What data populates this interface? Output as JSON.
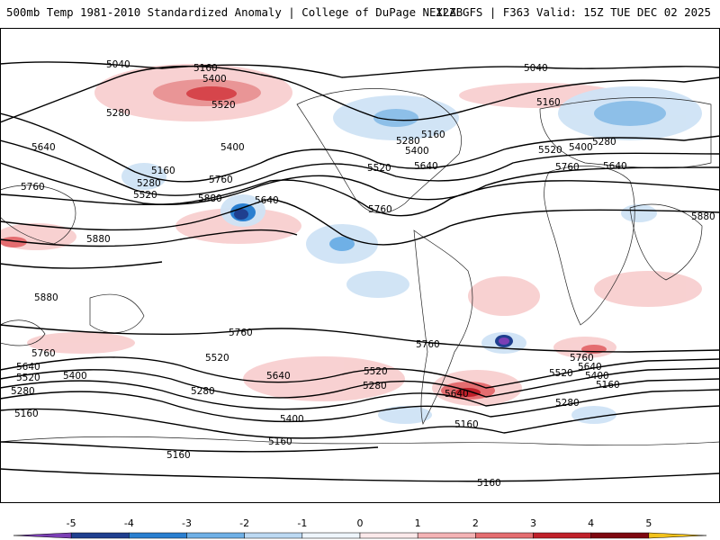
{
  "header": {
    "title": "500mb Temp 1981-2010 Standardized Anomaly | College of DuPage NEXLAB",
    "run_info": "12Z GFS | F363 Valid: 15Z TUE DEC 02 2025"
  },
  "map": {
    "projection": "global cylindrical",
    "contour_labels": [
      {
        "id": "c1",
        "text": "5040"
      },
      {
        "id": "c2",
        "text": "5160"
      },
      {
        "id": "c3",
        "text": "5400"
      },
      {
        "id": "c4",
        "text": "5520"
      },
      {
        "id": "c5",
        "text": "5280"
      },
      {
        "id": "c6",
        "text": "5040"
      },
      {
        "id": "c7",
        "text": "5160"
      },
      {
        "id": "c8",
        "text": "5160"
      },
      {
        "id": "c9",
        "text": "5280"
      },
      {
        "id": "c10",
        "text": "5400"
      },
      {
        "id": "c11",
        "text": "5520"
      },
      {
        "id": "c12",
        "text": "5640"
      },
      {
        "id": "c13",
        "text": "5520"
      },
      {
        "id": "c14",
        "text": "5400"
      },
      {
        "id": "c15",
        "text": "5280"
      },
      {
        "id": "c16",
        "text": "5760"
      },
      {
        "id": "c17",
        "text": "5640"
      },
      {
        "id": "c18",
        "text": "5640"
      },
      {
        "id": "c19",
        "text": "5400"
      },
      {
        "id": "c20",
        "text": "5160"
      },
      {
        "id": "c21",
        "text": "5280"
      },
      {
        "id": "c22",
        "text": "5520"
      },
      {
        "id": "c23",
        "text": "5760"
      },
      {
        "id": "c24",
        "text": "5640"
      },
      {
        "id": "c25",
        "text": "5760"
      },
      {
        "id": "c26",
        "text": "5880"
      },
      {
        "id": "c27",
        "text": "5760"
      },
      {
        "id": "c28",
        "text": "5880"
      },
      {
        "id": "c29",
        "text": "5880"
      },
      {
        "id": "c30",
        "text": "5880"
      },
      {
        "id": "c31",
        "text": "5760"
      },
      {
        "id": "c32",
        "text": "5640"
      },
      {
        "id": "c33",
        "text": "5520"
      },
      {
        "id": "c34",
        "text": "5400"
      },
      {
        "id": "c35",
        "text": "5280"
      },
      {
        "id": "c36",
        "text": "5160"
      },
      {
        "id": "c37",
        "text": "5520"
      },
      {
        "id": "c38",
        "text": "5760"
      },
      {
        "id": "c39",
        "text": "5640"
      },
      {
        "id": "c40",
        "text": "5280"
      },
      {
        "id": "c41",
        "text": "5400"
      },
      {
        "id": "c42",
        "text": "5160"
      },
      {
        "id": "c43",
        "text": "5160"
      },
      {
        "id": "c44",
        "text": "5520"
      },
      {
        "id": "c45",
        "text": "5280"
      },
      {
        "id": "c46",
        "text": "5760"
      },
      {
        "id": "c47",
        "text": "5640"
      },
      {
        "id": "c48",
        "text": "5160"
      },
      {
        "id": "c49",
        "text": "5760"
      },
      {
        "id": "c50",
        "text": "5640"
      },
      {
        "id": "c51",
        "text": "5400"
      },
      {
        "id": "c52",
        "text": "5520"
      },
      {
        "id": "c53",
        "text": "5160"
      },
      {
        "id": "c54",
        "text": "5280"
      },
      {
        "id": "c55",
        "text": "5160"
      }
    ]
  },
  "colorbar": {
    "ticks": [
      "-5",
      "-4",
      "-3",
      "-2",
      "-1",
      "0",
      "1",
      "2",
      "3",
      "4",
      "5"
    ],
    "colors": [
      "#7b3fb5",
      "#1f3f8f",
      "#2a7fd0",
      "#6fb0e6",
      "#bcd9f2",
      "#eef5fb",
      "#fbe9ea",
      "#f4b3b5",
      "#e46d70",
      "#c0202a",
      "#7e0710",
      "#f2c21b"
    ]
  }
}
